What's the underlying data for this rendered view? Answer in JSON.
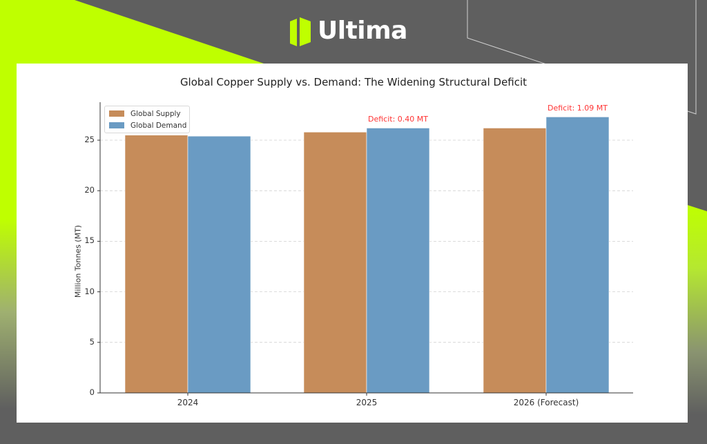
{
  "brand": {
    "name": "Ultima",
    "accent_color": "#bfff00",
    "background_color": "#5f5f5f"
  },
  "chart_data": {
    "type": "bar",
    "title": "Global Copper Supply vs. Demand: The Widening Structural Deficit",
    "xlabel": "",
    "ylabel": "Million Tonnes (MT)",
    "categories": [
      "2024",
      "2025",
      "2026 (Forecast)"
    ],
    "series": [
      {
        "name": "Global Supply",
        "color": "#c68c5a",
        "values": [
          25.5,
          25.8,
          26.2
        ]
      },
      {
        "name": "Global Demand",
        "color": "#6a9bc3",
        "values": [
          25.4,
          26.2,
          27.3
        ]
      }
    ],
    "yticks": [
      "0",
      "5",
      "10",
      "15",
      "20",
      "25"
    ],
    "ylim": [
      0,
      28.8
    ],
    "grid": true,
    "legend_position": "upper left",
    "annotations": [
      {
        "category": "2025",
        "text": "Deficit: 0.40 MT",
        "color": "#ff3333"
      },
      {
        "category": "2026 (Forecast)",
        "text": "Deficit: 1.09 MT",
        "color": "#ff3333"
      }
    ]
  }
}
